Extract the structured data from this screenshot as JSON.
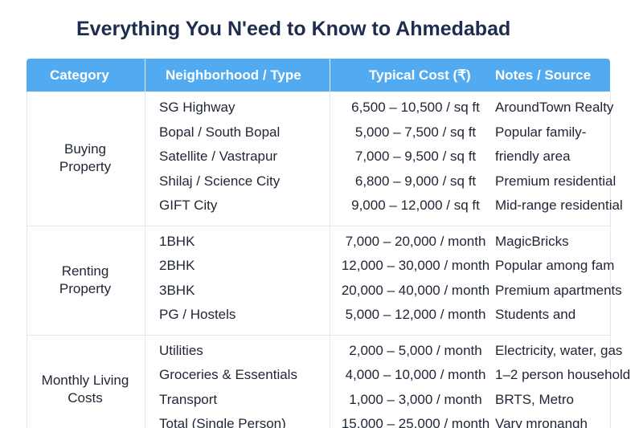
{
  "title": "Everything You N'eed to Know to Ahmedabad",
  "table": {
    "columns": [
      "Category",
      "Neighborhood / Type",
      "Typical Cost (₹)",
      "Notes / Source"
    ],
    "groups": [
      {
        "category": "Buying Property",
        "rows": [
          [
            "SG Highway",
            "6,500 – 10,500 / sq ft",
            "AroundTown Realty"
          ],
          [
            "Bopal / South Bopal",
            "5,000 – 7,500 / sq ft",
            "Popular family-"
          ],
          [
            "Satellite / Vastrapur",
            "7,000 – 9,500 / sq ft",
            "friendly area"
          ],
          [
            "Shilaj / Science City",
            "6,800 – 9,000 / sq ft",
            "Premium residential"
          ],
          [
            "GIFT City",
            "9,000 – 12,000 / sq ft",
            "Mid-range residential"
          ]
        ]
      },
      {
        "category": "Renting Property",
        "rows": [
          [
            "1BHK",
            "7,000 – 20,000 / month",
            "MagicBricks"
          ],
          [
            "2BHK",
            "12,000 – 30,000 / month",
            "Popular among fam"
          ],
          [
            "3BHK",
            "20,000 – 40,000 / month",
            "Premium apartments"
          ],
          [
            "PG / Hostels",
            "5,000 – 12,000 / month",
            "Students and"
          ]
        ]
      },
      {
        "category": "Monthly Living Costs",
        "rows": [
          [
            "Utilities",
            "2,000 – 5,000 / month",
            "Electricity, water, gas"
          ],
          [
            "Groceries & Essentials",
            "4,000 – 10,000 / month",
            "1–2 person household"
          ],
          [
            "Transport",
            "1,000 – 3,000 / month",
            "BRTS, Metro"
          ],
          [
            "Total (Single Person)",
            "15,000 – 25,000 / month",
            "Vary mronangh"
          ]
        ]
      }
    ]
  }
}
